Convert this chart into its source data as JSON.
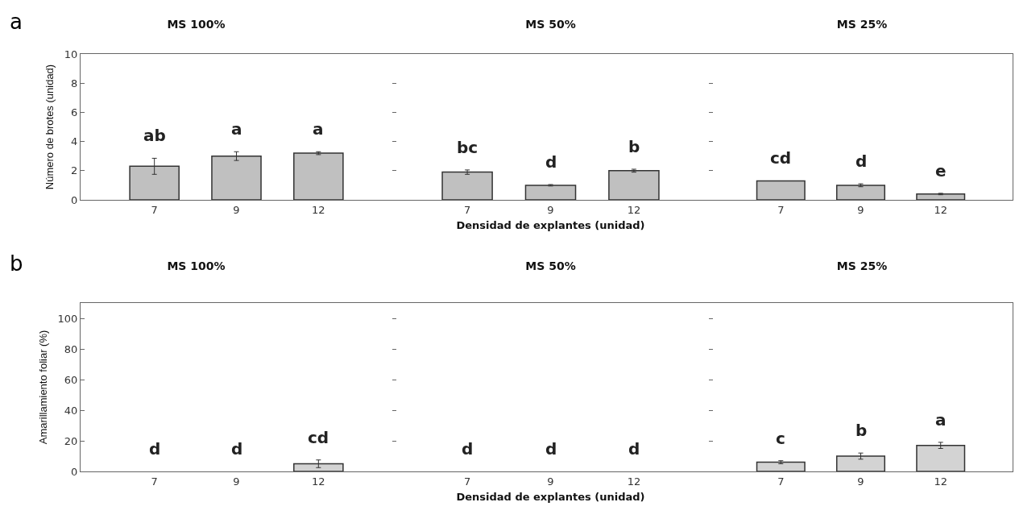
{
  "chart_data": [
    {
      "type": "bar",
      "title": "MS 100%",
      "ylabel": "Número de brotes (unidad)",
      "categories": [
        "7",
        "9",
        "12"
      ],
      "values": [
        2.3,
        3.0,
        3.2
      ],
      "errors": [
        0.55,
        0.3,
        0.1
      ],
      "color": "#c0c0c0",
      "ylim": [
        0,
        10
      ],
      "yticks": [
        0,
        2,
        4,
        6,
        8,
        10
      ],
      "annotations": [
        "a",
        "ab",
        "a",
        "a"
      ]
    },
    {
      "type": "bar",
      "title": "MS 50%",
      "xlabel": "Densidad de explantes (unidad)",
      "categories": [
        "7",
        "9",
        "12"
      ],
      "values": [
        1.9,
        1.0,
        2.0
      ],
      "errors": [
        0.15,
        0.05,
        0.1
      ],
      "color": "#c0c0c0",
      "ylim": [
        0,
        10
      ],
      "yticks": [
        0,
        2,
        4,
        6,
        8,
        10
      ],
      "tick_labels": "x",
      "annotations": [
        "bc",
        "d",
        "b"
      ]
    },
    {
      "type": "bar",
      "title": "MS 25%",
      "categories": [
        "7",
        "9",
        "12"
      ],
      "values": [
        1.3,
        1.0,
        0.4
      ],
      "errors": [
        null,
        0.1,
        0.05
      ],
      "color": "#c0c0c0",
      "ylim": [
        0,
        10
      ],
      "yticks": [
        0,
        2,
        4,
        6,
        8,
        10
      ],
      "tick_labels": "x",
      "annotations": [
        "cd",
        "d",
        "e"
      ]
    },
    {
      "type": "bar",
      "title": "MS 100%",
      "ylabel": "Amarillamiento foliar (%)",
      "categories": [
        "7",
        "9",
        "12"
      ],
      "values": [
        0,
        0,
        5
      ],
      "errors": [
        null,
        null,
        2.5
      ],
      "color": "#d3d3d3",
      "ylim": [
        0,
        110
      ],
      "yticks": [
        0,
        20,
        40,
        60,
        80,
        100
      ],
      "annotations": [
        "b",
        "d",
        "d",
        "cd"
      ]
    },
    {
      "type": "bar",
      "title": "MS 50%",
      "xlabel": "Densidad de explantes (unidad)",
      "categories": [
        "7",
        "9",
        "12"
      ],
      "values": [
        0,
        0,
        0
      ],
      "color": "#d3d3d3",
      "ylim": [
        0,
        110
      ],
      "yticks": [
        0,
        20,
        40,
        60,
        80,
        100
      ],
      "tick_labels": "x",
      "annotations": [
        "d",
        "d",
        "d"
      ]
    },
    {
      "type": "bar",
      "title": "MS 25%",
      "categories": [
        "7",
        "9",
        "12"
      ],
      "values": [
        6,
        10,
        17
      ],
      "errors": [
        1,
        2,
        2
      ],
      "color": "#d3d3d3",
      "ylim": [
        0,
        110
      ],
      "yticks": [
        0,
        20,
        40,
        60,
        80,
        100
      ],
      "tick_labels": "x",
      "annotations": [
        "c",
        "b",
        "a"
      ]
    }
  ]
}
